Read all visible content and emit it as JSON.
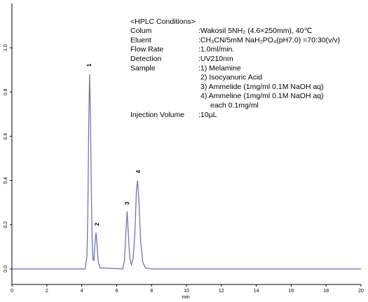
{
  "chart_data": {
    "type": "line",
    "xlabel": "min",
    "xlim": [
      0,
      20
    ],
    "ylim": [
      -0.07,
      1.2
    ],
    "xticks": [
      0,
      2,
      4,
      6,
      8,
      10,
      12,
      14,
      16,
      18,
      20
    ],
    "yticks": [
      {
        "value": 0,
        "label": "0.0"
      },
      {
        "value": 0.2,
        "label": "0.2"
      },
      {
        "value": 0.4,
        "label": "0.4"
      },
      {
        "value": 0.6,
        "label": "0.6"
      },
      {
        "value": 0.8,
        "label": "0.8"
      },
      {
        "value": 1,
        "label": "1.0"
      }
    ],
    "series": [
      {
        "color": "#6a6aa8",
        "x": [
          0,
          4.2,
          4.3,
          4.35,
          4.4,
          4.45,
          4.5,
          4.55,
          4.6,
          4.65,
          4.7,
          4.75,
          4.82,
          4.88,
          4.95,
          5.05,
          6.35,
          6.45,
          6.52,
          6.6,
          6.67,
          6.75,
          6.85,
          6.95,
          7.05,
          7.13,
          7.2,
          7.28,
          7.38,
          7.5,
          7.65,
          8,
          20
        ],
        "values": [
          0,
          0,
          0.06,
          0.25,
          0.65,
          0.88,
          0.7,
          0.35,
          0.12,
          0.04,
          0.04,
          0.11,
          0.165,
          0.1,
          0.03,
          0.005,
          0,
          0.04,
          0.15,
          0.26,
          0.16,
          0.05,
          0.02,
          0.05,
          0.17,
          0.35,
          0.4,
          0.3,
          0.12,
          0.03,
          0.005,
          0,
          0
        ]
      }
    ],
    "peak_labels": [
      "1",
      "2",
      "3",
      "4"
    ],
    "conditions": {
      "title": "<HPLC Conditions>",
      "rows": [
        {
          "label": "Colum",
          "lines": [
            ":Wakosil 5NH₂ (4.6×250mm), 40℃"
          ]
        },
        {
          "label": "Eluent",
          "lines": [
            ":CH₃CN/5mM NaH₂PO₄(pH7.0) =70:30(v/v)"
          ]
        },
        {
          "label": "Flow Rate",
          "lines": [
            ":1.0ml/min."
          ]
        },
        {
          "label": "Detection",
          "lines": [
            ":UV210nm"
          ]
        },
        {
          "label": "Sample",
          "lines": [
            ":1) Melamine",
            "2) Isocyanuric Acid",
            "3) Ammelide (1mg/ml 0.1M NaOH aq)",
            "4) Ammeline (1mg/ml 0.1M NaOH aq)",
            "each 0.1mg/ml"
          ]
        },
        {
          "label": "Injection Volume",
          "lines": [
            ":10µL"
          ]
        }
      ]
    }
  }
}
